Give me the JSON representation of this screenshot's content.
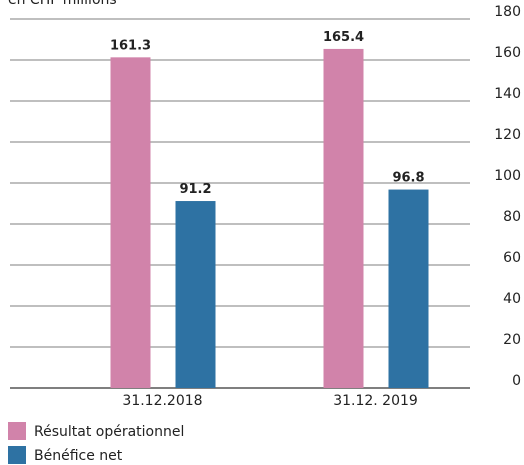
{
  "chart_data": {
    "type": "bar",
    "title": "en CHF millions",
    "categories": [
      "31.12.2018",
      "31.12. 2019"
    ],
    "series": [
      {
        "name": "Résultat opérationnel",
        "color": "#d183aa",
        "values": [
          161.3,
          165.4
        ]
      },
      {
        "name": "Bénéfice net",
        "color": "#2e72a3",
        "values": [
          91.2,
          96.8
        ]
      }
    ],
    "ylim": [
      0,
      180
    ],
    "yticks": [
      0,
      20,
      40,
      60,
      80,
      100,
      120,
      140,
      160,
      180
    ],
    "grid": true,
    "legend": "bottom-left"
  }
}
